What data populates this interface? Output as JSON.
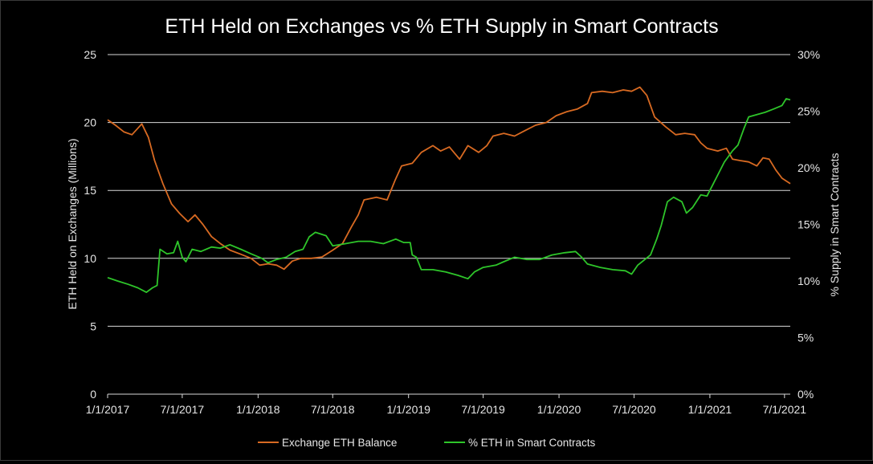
{
  "chart_data": {
    "type": "line",
    "title": "ETH Held on Exchanges vs % ETH Supply in Smart Contracts",
    "xlabel": "",
    "ylabel": "ETH Held on Exchanges (Millions)",
    "y2label": "% Supply in Smart Contracts",
    "ylim": [
      0,
      25
    ],
    "y2lim": [
      0,
      30
    ],
    "xlim": [
      "2017-01-01",
      "2021-07-15"
    ],
    "x_ticks": [
      "1/1/2017",
      "7/1/2017",
      "1/1/2018",
      "7/1/2018",
      "1/1/2019",
      "7/1/2019",
      "1/1/2020",
      "7/1/2020",
      "1/1/2021",
      "7/1/2021"
    ],
    "y_ticks": [
      "0",
      "5",
      "10",
      "15",
      "20",
      "25"
    ],
    "y2_ticks": [
      "0%",
      "5%",
      "10%",
      "15%",
      "20%",
      "25%",
      "30%"
    ],
    "grid": true,
    "legend_position": "bottom",
    "series": [
      {
        "name": "Exchange ETH Balance",
        "axis": "left",
        "color": "#d86a22",
        "points": [
          [
            "2017-01-01",
            20.2
          ],
          [
            "2017-01-20",
            19.8
          ],
          [
            "2017-02-10",
            19.3
          ],
          [
            "2017-03-01",
            19.1
          ],
          [
            "2017-03-25",
            19.9
          ],
          [
            "2017-04-10",
            18.9
          ],
          [
            "2017-04-25",
            17.2
          ],
          [
            "2017-05-15",
            15.5
          ],
          [
            "2017-06-05",
            14.0
          ],
          [
            "2017-06-25",
            13.3
          ],
          [
            "2017-07-15",
            12.7
          ],
          [
            "2017-08-01",
            13.2
          ],
          [
            "2017-08-20",
            12.5
          ],
          [
            "2017-09-10",
            11.6
          ],
          [
            "2017-10-01",
            11.1
          ],
          [
            "2017-10-25",
            10.6
          ],
          [
            "2017-11-20",
            10.3
          ],
          [
            "2017-12-15",
            10.0
          ],
          [
            "2018-01-05",
            9.5
          ],
          [
            "2018-01-25",
            9.6
          ],
          [
            "2018-02-15",
            9.5
          ],
          [
            "2018-03-05",
            9.2
          ],
          [
            "2018-03-25",
            9.8
          ],
          [
            "2018-04-15",
            10.0
          ],
          [
            "2018-05-10",
            10.0
          ],
          [
            "2018-06-05",
            10.1
          ],
          [
            "2018-07-01",
            10.6
          ],
          [
            "2018-07-25",
            11.1
          ],
          [
            "2018-08-15",
            12.3
          ],
          [
            "2018-09-01",
            13.2
          ],
          [
            "2018-09-15",
            14.3
          ],
          [
            "2018-10-15",
            14.5
          ],
          [
            "2018-11-10",
            14.3
          ],
          [
            "2018-11-30",
            15.8
          ],
          [
            "2018-12-15",
            16.8
          ],
          [
            "2019-01-10",
            17.0
          ],
          [
            "2019-02-01",
            17.8
          ],
          [
            "2019-03-01",
            18.3
          ],
          [
            "2019-03-20",
            17.9
          ],
          [
            "2019-04-10",
            18.2
          ],
          [
            "2019-05-05",
            17.3
          ],
          [
            "2019-05-25",
            18.3
          ],
          [
            "2019-06-20",
            17.8
          ],
          [
            "2019-07-10",
            18.3
          ],
          [
            "2019-07-25",
            19.0
          ],
          [
            "2019-08-20",
            19.2
          ],
          [
            "2019-09-15",
            19.0
          ],
          [
            "2019-10-10",
            19.4
          ],
          [
            "2019-11-05",
            19.8
          ],
          [
            "2019-12-01",
            20.0
          ],
          [
            "2019-12-25",
            20.5
          ],
          [
            "2020-01-20",
            20.8
          ],
          [
            "2020-02-15",
            21.0
          ],
          [
            "2020-03-10",
            21.4
          ],
          [
            "2020-03-20",
            22.2
          ],
          [
            "2020-04-15",
            22.3
          ],
          [
            "2020-05-10",
            22.2
          ],
          [
            "2020-06-05",
            22.4
          ],
          [
            "2020-06-25",
            22.3
          ],
          [
            "2020-07-15",
            22.6
          ],
          [
            "2020-08-01",
            22.0
          ],
          [
            "2020-08-20",
            20.4
          ],
          [
            "2020-09-15",
            19.7
          ],
          [
            "2020-10-10",
            19.1
          ],
          [
            "2020-11-01",
            19.2
          ],
          [
            "2020-11-25",
            19.1
          ],
          [
            "2020-12-10",
            18.5
          ],
          [
            "2020-12-25",
            18.1
          ],
          [
            "2021-01-20",
            17.9
          ],
          [
            "2021-02-10",
            18.1
          ],
          [
            "2021-02-25",
            17.3
          ],
          [
            "2021-03-15",
            17.2
          ],
          [
            "2021-04-05",
            17.1
          ],
          [
            "2021-04-25",
            16.8
          ],
          [
            "2021-05-10",
            17.4
          ],
          [
            "2021-05-25",
            17.3
          ],
          [
            "2021-06-10",
            16.5
          ],
          [
            "2021-06-25",
            15.9
          ],
          [
            "2021-07-15",
            15.5
          ]
        ]
      },
      {
        "name": "% ETH in Smart Contracts",
        "axis": "right",
        "color": "#2ec52a",
        "points": [
          [
            "2017-01-01",
            10.3
          ],
          [
            "2017-01-25",
            10.0
          ],
          [
            "2017-02-20",
            9.7
          ],
          [
            "2017-03-15",
            9.4
          ],
          [
            "2017-04-05",
            9.0
          ],
          [
            "2017-04-20",
            9.4
          ],
          [
            "2017-05-01",
            9.6
          ],
          [
            "2017-05-08",
            12.8
          ],
          [
            "2017-05-25",
            12.4
          ],
          [
            "2017-06-10",
            12.5
          ],
          [
            "2017-06-20",
            13.5
          ],
          [
            "2017-07-01",
            12.1
          ],
          [
            "2017-07-10",
            11.7
          ],
          [
            "2017-07-25",
            12.8
          ],
          [
            "2017-08-15",
            12.6
          ],
          [
            "2017-09-10",
            13.0
          ],
          [
            "2017-10-01",
            12.9
          ],
          [
            "2017-10-25",
            13.2
          ],
          [
            "2017-11-20",
            12.8
          ],
          [
            "2017-12-15",
            12.4
          ],
          [
            "2018-01-10",
            12.0
          ],
          [
            "2018-01-25",
            11.6
          ],
          [
            "2018-02-15",
            11.9
          ],
          [
            "2018-03-10",
            12.1
          ],
          [
            "2018-04-01",
            12.6
          ],
          [
            "2018-04-20",
            12.8
          ],
          [
            "2018-05-05",
            13.9
          ],
          [
            "2018-05-20",
            14.3
          ],
          [
            "2018-06-15",
            14.0
          ],
          [
            "2018-07-01",
            13.1
          ],
          [
            "2018-08-01",
            13.3
          ],
          [
            "2018-09-01",
            13.5
          ],
          [
            "2018-10-01",
            13.5
          ],
          [
            "2018-11-01",
            13.3
          ],
          [
            "2018-12-01",
            13.7
          ],
          [
            "2018-12-20",
            13.4
          ],
          [
            "2019-01-05",
            13.4
          ],
          [
            "2019-01-10",
            12.3
          ],
          [
            "2019-01-20",
            12.1
          ],
          [
            "2019-02-01",
            11.0
          ],
          [
            "2019-03-01",
            11.0
          ],
          [
            "2019-04-01",
            10.8
          ],
          [
            "2019-05-01",
            10.5
          ],
          [
            "2019-05-25",
            10.2
          ],
          [
            "2019-06-10",
            10.8
          ],
          [
            "2019-07-01",
            11.2
          ],
          [
            "2019-08-01",
            11.4
          ],
          [
            "2019-08-20",
            11.7
          ],
          [
            "2019-09-15",
            12.1
          ],
          [
            "2019-10-15",
            11.9
          ],
          [
            "2019-11-15",
            11.9
          ],
          [
            "2019-12-15",
            12.3
          ],
          [
            "2020-01-15",
            12.5
          ],
          [
            "2020-02-10",
            12.6
          ],
          [
            "2020-02-25",
            12.1
          ],
          [
            "2020-03-10",
            11.5
          ],
          [
            "2020-04-10",
            11.2
          ],
          [
            "2020-05-10",
            11.0
          ],
          [
            "2020-06-10",
            10.9
          ],
          [
            "2020-06-25",
            10.6
          ],
          [
            "2020-07-10",
            11.4
          ],
          [
            "2020-08-10",
            12.3
          ],
          [
            "2020-08-25",
            13.7
          ],
          [
            "2020-09-05",
            14.9
          ],
          [
            "2020-09-20",
            17.0
          ],
          [
            "2020-10-05",
            17.4
          ],
          [
            "2020-10-25",
            17.0
          ],
          [
            "2020-11-05",
            16.0
          ],
          [
            "2020-11-20",
            16.5
          ],
          [
            "2020-12-10",
            17.6
          ],
          [
            "2020-12-25",
            17.5
          ],
          [
            "2021-01-15",
            19.0
          ],
          [
            "2021-02-05",
            20.5
          ],
          [
            "2021-02-25",
            21.5
          ],
          [
            "2021-03-10",
            22.0
          ],
          [
            "2021-03-25",
            23.5
          ],
          [
            "2021-04-05",
            24.5
          ],
          [
            "2021-04-25",
            24.7
          ],
          [
            "2021-05-15",
            24.9
          ],
          [
            "2021-06-05",
            25.2
          ],
          [
            "2021-06-25",
            25.5
          ],
          [
            "2021-07-05",
            26.1
          ],
          [
            "2021-07-15",
            26.0
          ]
        ]
      }
    ]
  }
}
